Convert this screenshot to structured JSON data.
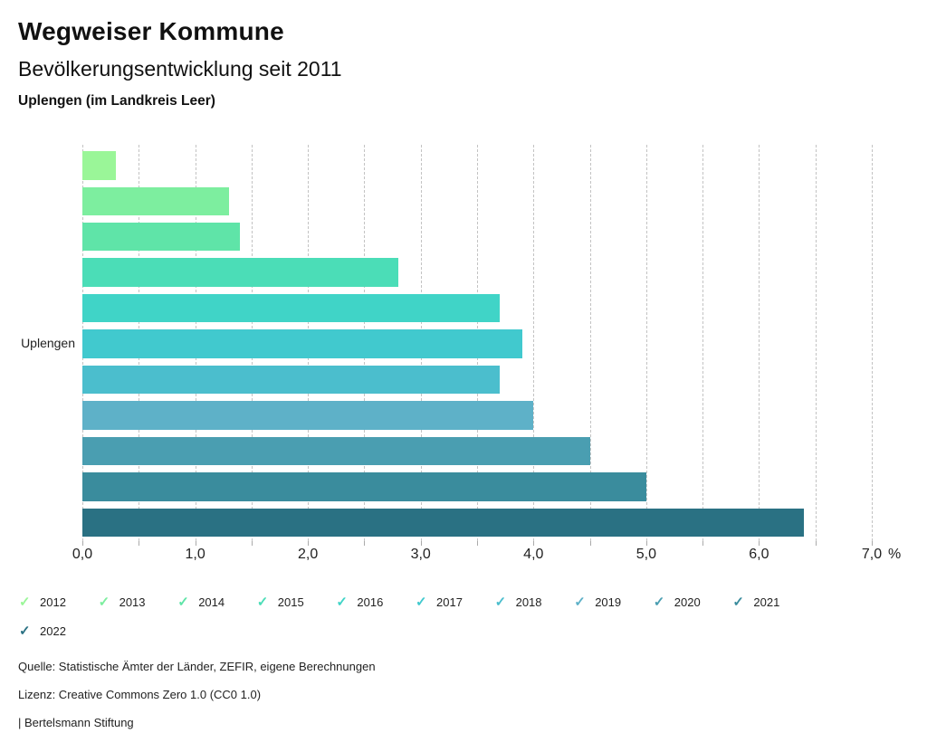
{
  "header": {
    "title": "Wegweiser Kommune",
    "subtitle": "Bevölkerungsentwicklung seit 2011",
    "region": "Uplengen (im Landkreis Leer)"
  },
  "chart_data": {
    "type": "bar",
    "orientation": "horizontal",
    "title": "Bevölkerungsentwicklung seit 2011",
    "category_label": "Uplengen",
    "unit": "%",
    "xlim": [
      0,
      7
    ],
    "grid_step": 0.5,
    "grid": true,
    "x_ticks": [
      "0,0",
      "1,0",
      "2,0",
      "3,0",
      "4,0",
      "5,0",
      "6,0",
      "7,0"
    ],
    "legend_position": "bottom",
    "series": [
      {
        "name": "2012",
        "value": 0.3,
        "color": "#9AF698"
      },
      {
        "name": "2013",
        "value": 1.3,
        "color": "#7DEE9F"
      },
      {
        "name": "2014",
        "value": 1.4,
        "color": "#5FE4A8"
      },
      {
        "name": "2015",
        "value": 2.8,
        "color": "#4BDDB7"
      },
      {
        "name": "2016",
        "value": 3.7,
        "color": "#40D4C7"
      },
      {
        "name": "2017",
        "value": 3.9,
        "color": "#41C9CE"
      },
      {
        "name": "2018",
        "value": 3.7,
        "color": "#4BBECD"
      },
      {
        "name": "2019",
        "value": 4.0,
        "color": "#5EB1C8"
      },
      {
        "name": "2020",
        "value": 4.5,
        "color": "#4A9EB1"
      },
      {
        "name": "2021",
        "value": 5.0,
        "color": "#3A8C9D"
      },
      {
        "name": "2022",
        "value": 6.4,
        "color": "#2A7183"
      }
    ],
    "legend_check_icon": "✓"
  },
  "footer": {
    "source": "Quelle: Statistische Ämter der Länder, ZEFIR, eigene Berechnungen",
    "license": "Lizenz: Creative Commons Zero 1.0 (CC0 1.0)",
    "attribution": "| Bertelsmann Stiftung"
  }
}
